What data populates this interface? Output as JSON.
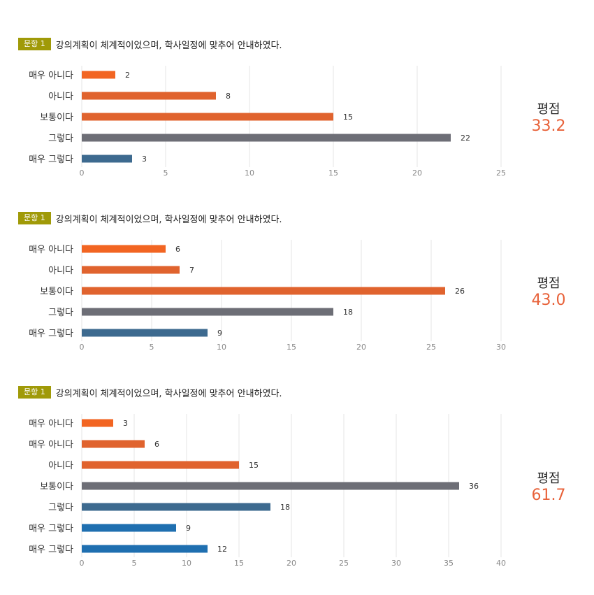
{
  "colors": {
    "badge": "#a09a08",
    "score_value": "#e8623a",
    "grid": "#e4e4e4"
  },
  "sections": [
    {
      "badge": "문항 1",
      "question": "강의계획이 체계적이었으며, 학사일정에 맞추어 안내하였다.",
      "score_label": "평점",
      "score_value": "33.2",
      "chart_data": {
        "type": "bar",
        "orientation": "horizontal",
        "categories": [
          "매우 아니다",
          "아니다",
          "보통이다",
          "그렇다",
          "매우 그렇다"
        ],
        "values": [
          2,
          8,
          15,
          22,
          3
        ],
        "colors": [
          "#f26522",
          "#e0632e",
          "#e0632e",
          "#6d6e76",
          "#3d6a8f"
        ],
        "xticks": [
          0,
          5,
          10,
          15,
          20,
          25
        ],
        "xlim": [
          0,
          25
        ],
        "grid": true
      }
    },
    {
      "badge": "문항 1",
      "question": "강의계획이 체계적이었으며, 학사일정에 맞추어 안내하였다.",
      "score_label": "평점",
      "score_value": "43.0",
      "chart_data": {
        "type": "bar",
        "orientation": "horizontal",
        "categories": [
          "매우 아니다",
          "아니다",
          "보통이다",
          "그렇다",
          "매우 그렇다"
        ],
        "values": [
          6,
          7,
          26,
          18,
          9
        ],
        "colors": [
          "#f26522",
          "#e0632e",
          "#e0632e",
          "#6d6e76",
          "#3d6a8f"
        ],
        "xticks": [
          0,
          5,
          10,
          15,
          20,
          25,
          30
        ],
        "xlim": [
          0,
          30
        ],
        "grid": true
      }
    },
    {
      "badge": "문항 1",
      "question": "강의계획이 체계적이었으며, 학사일정에 맞추어 안내하였다.",
      "score_label": "평점",
      "score_value": "61.7",
      "chart_data": {
        "type": "bar",
        "orientation": "horizontal",
        "categories": [
          "매우 아니다",
          "매우 아니다",
          "아니다",
          "보통이다",
          "그렇다",
          "매우 그렇다",
          "매우 그렇다"
        ],
        "values": [
          3,
          6,
          15,
          36,
          18,
          9,
          12
        ],
        "colors": [
          "#f26522",
          "#e0632e",
          "#e0632e",
          "#6d6e76",
          "#3d6a8f",
          "#1f6fb0",
          "#1f6fb0"
        ],
        "xticks": [
          0,
          5,
          10,
          15,
          20,
          25,
          30,
          35,
          40
        ],
        "xlim": [
          0,
          40
        ],
        "grid": true
      }
    }
  ]
}
